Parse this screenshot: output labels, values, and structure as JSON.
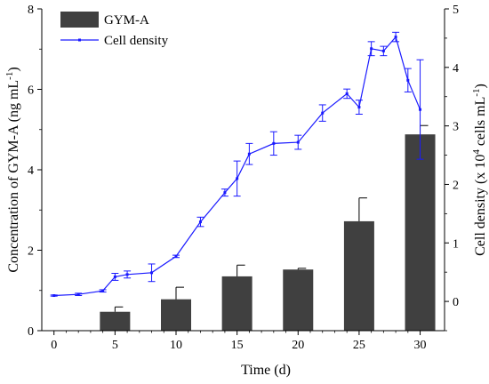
{
  "chart_data": {
    "type": "bar",
    "xlabel": "Time (d)",
    "ylabel_left_parts": [
      "Concentration of GYM-A (ng mL",
      "-1",
      ")"
    ],
    "ylabel_right_parts": [
      "Cell density  (x 10",
      "4",
      " cells mL",
      "-1",
      ")"
    ],
    "x_ticks": [
      0,
      5,
      10,
      15,
      20,
      25,
      30
    ],
    "xlim": [
      -1,
      32
    ],
    "y_left_ticks": [
      0,
      2,
      4,
      6,
      8
    ],
    "y_left_lim": [
      0,
      8
    ],
    "y_right_ticks": [
      0,
      1,
      2,
      3,
      4,
      5
    ],
    "y_right_lim": [
      -0.5,
      5
    ],
    "legend_position": "top-left",
    "colors": {
      "bar": "#404040",
      "line": "#1a1aff",
      "axis": "#000000"
    },
    "series": [
      {
        "name": "GYM-A",
        "type": "bar",
        "axis": "left",
        "x": [
          5,
          10,
          15,
          20,
          25,
          30
        ],
        "values": [
          0.47,
          0.78,
          1.35,
          1.52,
          2.72,
          4.88
        ],
        "error": [
          0.12,
          0.3,
          0.28,
          0.03,
          0.58,
          0.22
        ]
      },
      {
        "name": "Cell density",
        "type": "line",
        "axis": "right",
        "x": [
          0,
          2,
          4,
          5,
          6,
          8,
          10,
          12,
          14,
          15,
          16,
          18,
          20,
          22,
          24,
          25,
          26,
          27,
          28,
          29,
          30
        ],
        "values": [
          0.1,
          0.12,
          0.18,
          0.42,
          0.46,
          0.49,
          0.77,
          1.36,
          1.86,
          2.1,
          2.52,
          2.7,
          2.72,
          3.22,
          3.55,
          3.32,
          4.32,
          4.28,
          4.52,
          3.78,
          3.28
        ],
        "error": [
          0.01,
          0.02,
          0.02,
          0.06,
          0.06,
          0.15,
          0.02,
          0.08,
          0.06,
          0.3,
          0.18,
          0.2,
          0.12,
          0.14,
          0.08,
          0.12,
          0.12,
          0.08,
          0.08,
          0.2,
          0.85
        ]
      }
    ]
  }
}
